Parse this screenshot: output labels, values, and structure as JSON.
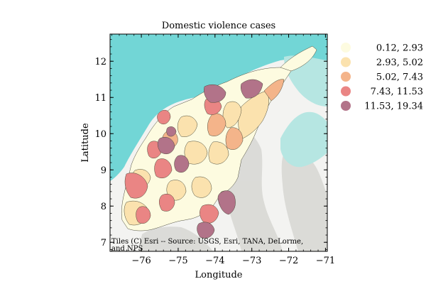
{
  "title": "Domestic violence cases",
  "xlabel": "Longitude",
  "ylabel": "Latitude",
  "attribution_line1": "Tiles (C) Esri -- Source: USGS, Esri, TANA, DeLorme,",
  "attribution_line2": "and NPS",
  "x_ticks": [
    {
      "value": -76,
      "label": "−76"
    },
    {
      "value": -75,
      "label": "−75"
    },
    {
      "value": -74,
      "label": "−74"
    },
    {
      "value": -73,
      "label": "−73"
    },
    {
      "value": -72,
      "label": "−72"
    },
    {
      "value": -71,
      "label": "−71"
    }
  ],
  "y_ticks": [
    {
      "value": 7,
      "label": "7"
    },
    {
      "value": 8,
      "label": "8"
    },
    {
      "value": 9,
      "label": "9"
    },
    {
      "value": 10,
      "label": "10"
    },
    {
      "value": 11,
      "label": "11"
    },
    {
      "value": 12,
      "label": "12"
    }
  ],
  "legend": [
    {
      "label": "0.12,  2.93",
      "color": "#fdfbe0"
    },
    {
      "label": "2.93,  5.02",
      "color": "#fbe2ae"
    },
    {
      "label": "5.02,  7.43",
      "color": "#f4b48a"
    },
    {
      "label": "7.43, 11.53",
      "color": "#ea8584"
    },
    {
      "label": "11.53, 19.34",
      "color": "#b27389"
    }
  ],
  "colors": {
    "sea_deep": "#72d6d6",
    "sea_light": "#b6e6e2",
    "land": "#f3f3f1",
    "relief": "#d0d0cc",
    "border": "#4a4a3a"
  },
  "chart_data": {
    "type": "choropleth",
    "title": "Domestic violence cases",
    "xlabel": "Longitude",
    "ylabel": "Latitude",
    "xlim": [
      -76.85,
      -70.95
    ],
    "ylim": [
      6.75,
      12.75
    ],
    "classes": [
      {
        "range": [
          0.12,
          2.93
        ]
      },
      {
        "range": [
          2.93,
          5.02
        ]
      },
      {
        "range": [
          5.02,
          7.43
        ]
      },
      {
        "range": [
          7.43,
          11.53
        ]
      },
      {
        "range": [
          11.53,
          19.34
        ]
      }
    ]
  }
}
